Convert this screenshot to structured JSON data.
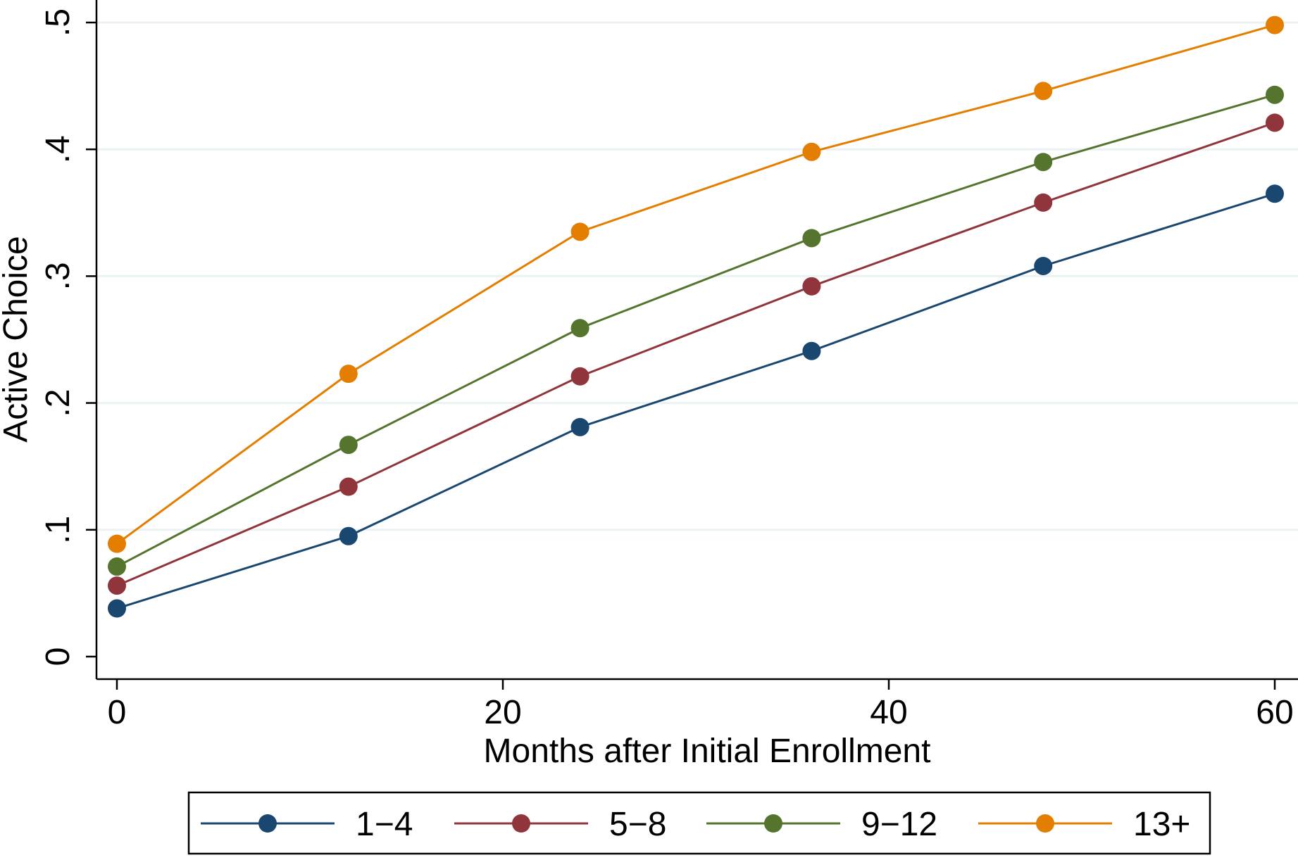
{
  "chart_data": {
    "type": "line",
    "title": "",
    "xlabel": "Months after Initial Enrollment",
    "ylabel": "Active Choice",
    "xlim": [
      0,
      60
    ],
    "ylim": [
      0,
      0.5
    ],
    "x_ticks": [
      0,
      20,
      40,
      60
    ],
    "x_tick_labels": [
      "0",
      "20",
      "40",
      "60"
    ],
    "y_ticks": [
      0,
      0.1,
      0.2,
      0.3,
      0.4,
      0.5
    ],
    "y_tick_labels": [
      "0",
      ".1",
      ".2",
      ".3",
      ".4",
      ".5"
    ],
    "grid": true,
    "legend_position": "bottom",
    "x": [
      0,
      12,
      24,
      36,
      48,
      60
    ],
    "series": [
      {
        "name": "1−4",
        "color": "#1a476f",
        "values": [
          0.038,
          0.095,
          0.181,
          0.241,
          0.308,
          0.365
        ]
      },
      {
        "name": "5−8",
        "color": "#90353b",
        "values": [
          0.056,
          0.134,
          0.221,
          0.292,
          0.358,
          0.421
        ]
      },
      {
        "name": "9−12",
        "color": "#55752f",
        "values": [
          0.071,
          0.167,
          0.259,
          0.33,
          0.39,
          0.443
        ]
      },
      {
        "name": "13+",
        "color": "#e37e00",
        "values": [
          0.089,
          0.223,
          0.335,
          0.398,
          0.446,
          0.498
        ]
      }
    ]
  }
}
